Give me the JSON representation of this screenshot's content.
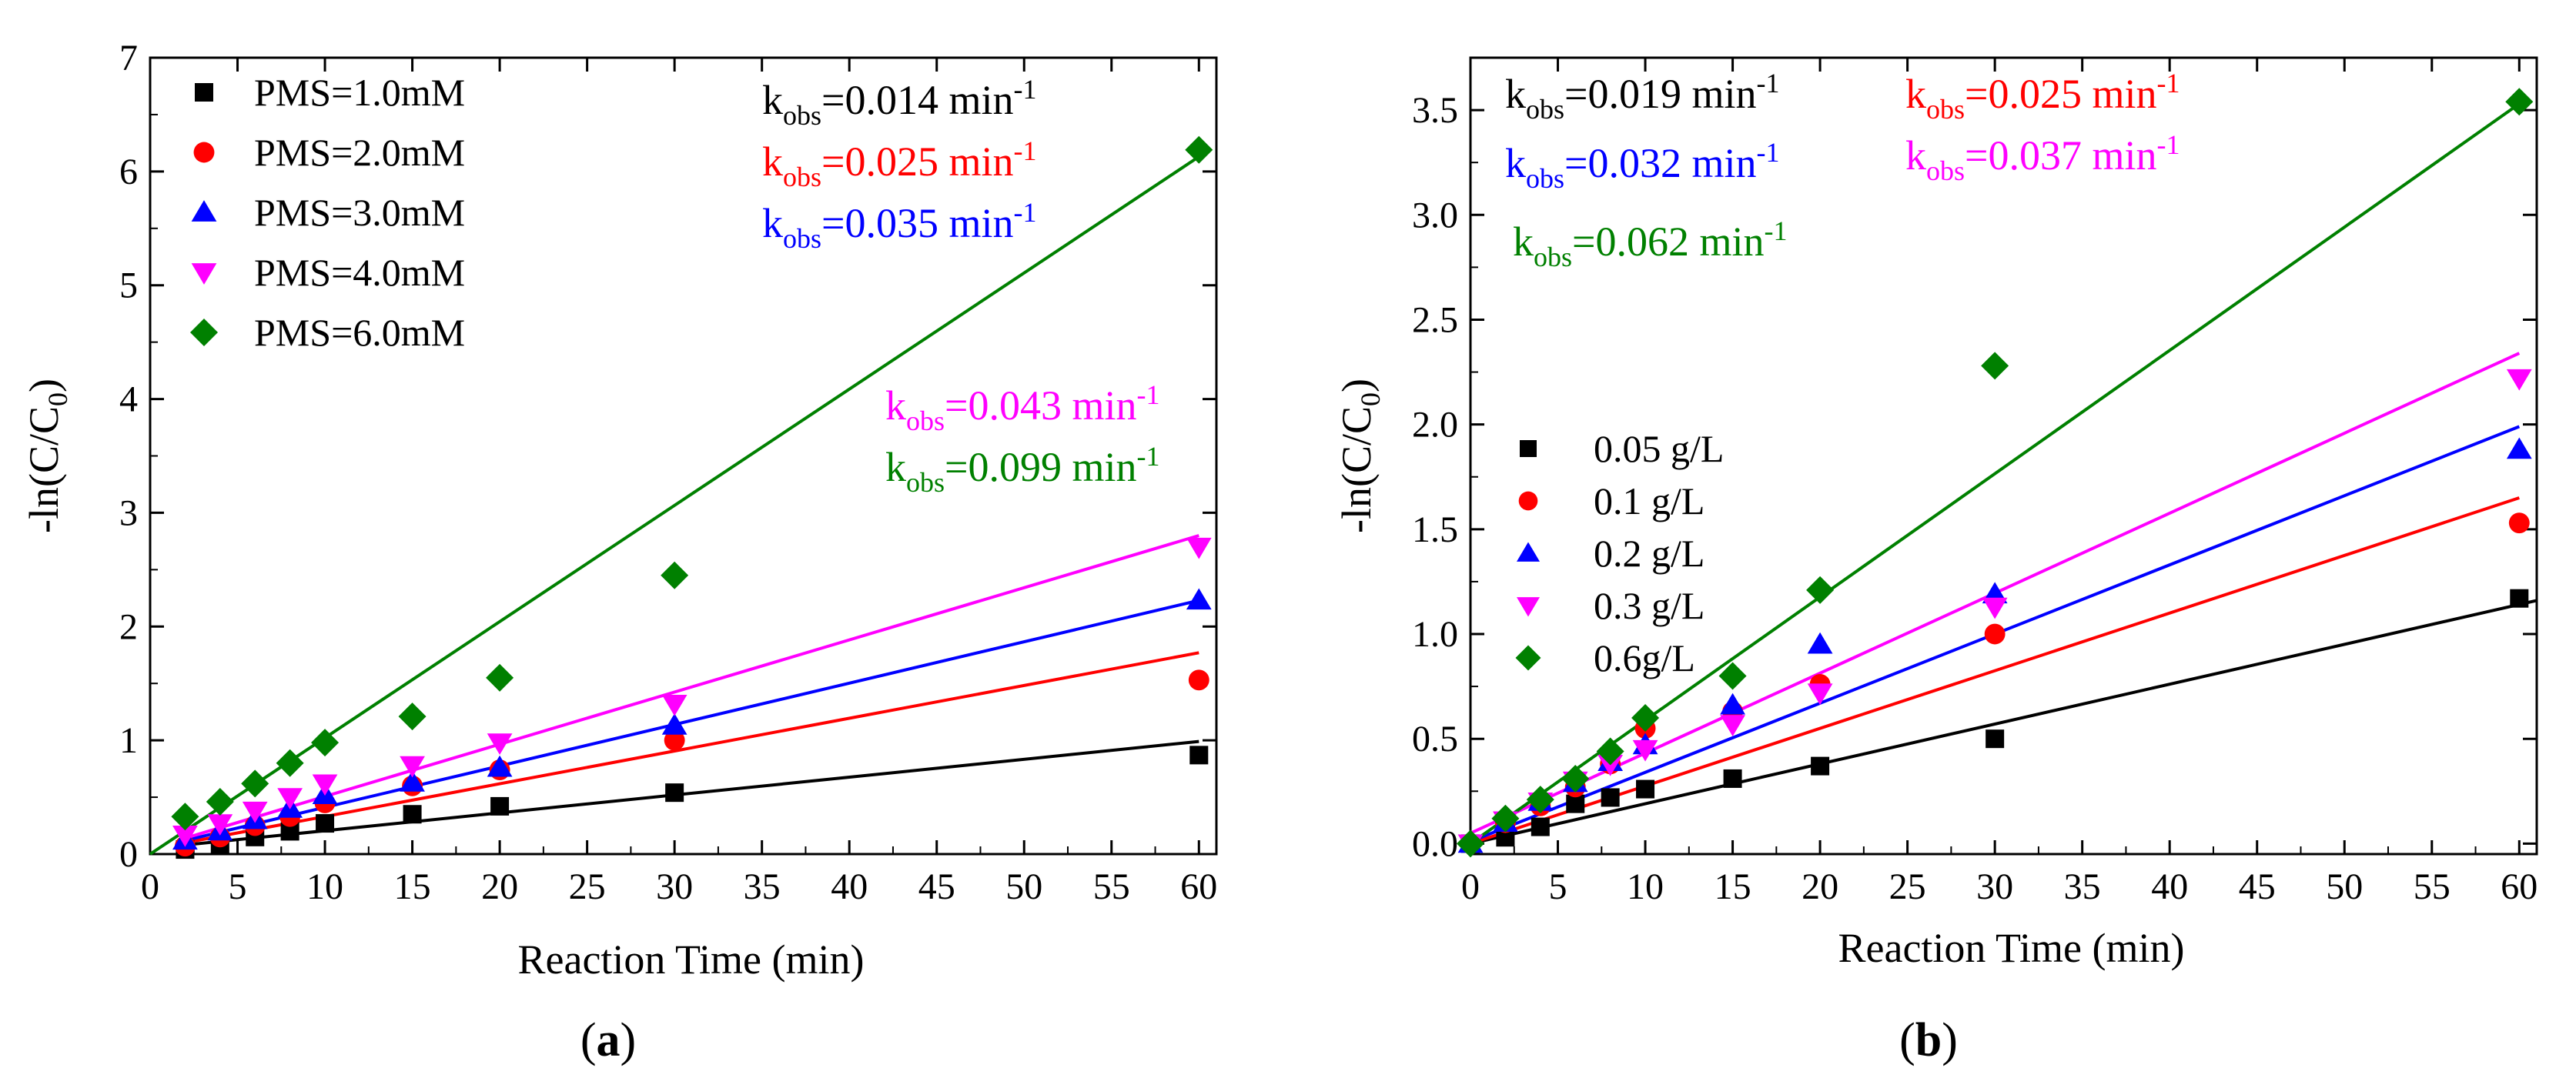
{
  "chart_data": [
    {
      "type": "scatter",
      "panel_label": "a",
      "xlabel": "Reaction Time (min)",
      "ylabel": "-ln(C/C",
      "ylabel_sub": "0",
      "ylabel_tail": ")",
      "xlim": [
        0,
        61
      ],
      "ylim": [
        0,
        7
      ],
      "xticks": [
        0,
        5,
        10,
        15,
        20,
        25,
        30,
        35,
        40,
        45,
        50,
        55,
        60
      ],
      "yticks": [
        0,
        1,
        2,
        3,
        4,
        5,
        6,
        7
      ],
      "legend_position": "top-left",
      "series": [
        {
          "name": "PMS=1.0mM",
          "marker": "square",
          "color": "#000000",
          "x": [
            2,
            4,
            6,
            8,
            10,
            15,
            20,
            30,
            60
          ],
          "y": [
            0.04,
            0.08,
            0.15,
            0.2,
            0.27,
            0.35,
            0.42,
            0.54,
            0.87
          ],
          "fit": {
            "x": [
              2,
              60
            ],
            "y": [
              0.08,
              0.99
            ]
          }
        },
        {
          "name": "PMS=2.0mM",
          "marker": "circle",
          "color": "#ff0000",
          "x": [
            2,
            4,
            6,
            8,
            10,
            15,
            20,
            30,
            60
          ],
          "y": [
            0.07,
            0.15,
            0.25,
            0.33,
            0.45,
            0.6,
            0.74,
            1.0,
            1.53
          ],
          "fit": {
            "x": [
              2,
              60
            ],
            "y": [
              0.1,
              1.77
            ]
          }
        },
        {
          "name": "PMS=3.0mM",
          "marker": "triangle-up",
          "color": "#0000ff",
          "x": [
            2,
            4,
            6,
            8,
            10,
            15,
            20,
            30,
            60
          ],
          "y": [
            0.12,
            0.2,
            0.3,
            0.4,
            0.52,
            0.63,
            0.76,
            1.13,
            2.23
          ],
          "fit": {
            "x": [
              2,
              60
            ],
            "y": [
              0.12,
              2.23
            ]
          }
        },
        {
          "name": "PMS=4.0mM",
          "marker": "triangle-down",
          "color": "#ff00ff",
          "x": [
            2,
            4,
            6,
            8,
            10,
            15,
            20,
            30,
            60
          ],
          "y": [
            0.17,
            0.27,
            0.38,
            0.5,
            0.62,
            0.78,
            0.98,
            1.32,
            2.7
          ],
          "fit": {
            "x": [
              2,
              60
            ],
            "y": [
              0.14,
              2.8
            ]
          }
        },
        {
          "name": "PMS=6.0mM",
          "marker": "diamond",
          "color": "#008000",
          "x": [
            2,
            4,
            6,
            8,
            10,
            15,
            20,
            30,
            60
          ],
          "y": [
            0.33,
            0.46,
            0.62,
            0.8,
            0.98,
            1.21,
            1.55,
            2.45,
            6.19
          ],
          "fit": {
            "x": [
              0,
              60
            ],
            "y": [
              0.0,
              6.13
            ]
          }
        }
      ],
      "annotations": [
        {
          "prefix": "k",
          "sub": "obs",
          "value": "=0.014 min",
          "sup": "-1",
          "color": "#000000"
        },
        {
          "prefix": "k",
          "sub": "obs",
          "value": "=0.025 min",
          "sup": "-1",
          "color": "#ff0000"
        },
        {
          "prefix": "k",
          "sub": "obs",
          "value": "=0.035 min",
          "sup": "-1",
          "color": "#0000ff"
        },
        {
          "prefix": "k",
          "sub": "obs",
          "value": "=0.043 min",
          "sup": "-1",
          "color": "#ff00ff"
        },
        {
          "prefix": "k",
          "sub": "obs",
          "value": "=0.099 min",
          "sup": "-1",
          "color": "#008000"
        }
      ]
    },
    {
      "type": "scatter",
      "panel_label": "b",
      "xlabel": "Reaction Time (min)",
      "ylabel": "-ln(C/C",
      "ylabel_sub": "0",
      "ylabel_tail": ")",
      "xlim": [
        0,
        61
      ],
      "ylim": [
        -0.05,
        3.75
      ],
      "xticks": [
        0,
        5,
        10,
        15,
        20,
        25,
        30,
        35,
        40,
        45,
        50,
        55,
        60
      ],
      "yticks": [
        0.0,
        0.5,
        1.0,
        1.5,
        2.0,
        2.5,
        3.0,
        3.5
      ],
      "ytick_labels": [
        "0.0",
        "0.5",
        "1.0",
        "1.5",
        "2.0",
        "2.5",
        "3.0",
        "3.5"
      ],
      "legend_position": "middle-left",
      "series": [
        {
          "name": "0.05 g/L",
          "marker": "square",
          "color": "#000000",
          "x": [
            0,
            2,
            4,
            6,
            8,
            10,
            15,
            20,
            30,
            60
          ],
          "y": [
            0.0,
            0.03,
            0.08,
            0.19,
            0.22,
            0.26,
            0.31,
            0.37,
            0.5,
            1.17
          ],
          "fit": {
            "x": [
              0,
              61
            ],
            "y": [
              0.0,
              1.16
            ]
          }
        },
        {
          "name": "0.1 g/L",
          "marker": "circle",
          "color": "#ff0000",
          "x": [
            0,
            2,
            4,
            6,
            8,
            10,
            15,
            20,
            30,
            60
          ],
          "y": [
            0.0,
            0.1,
            0.18,
            0.27,
            0.38,
            0.55,
            0.63,
            0.76,
            1.0,
            1.53
          ],
          "fit": {
            "x": [
              0,
              60
            ],
            "y": [
              0.0,
              1.65
            ]
          }
        },
        {
          "name": "0.2 g/L",
          "marker": "triangle-up",
          "color": "#0000ff",
          "x": [
            0,
            2,
            4,
            6,
            8,
            10,
            15,
            20,
            30,
            60
          ],
          "y": [
            0.0,
            0.1,
            0.2,
            0.29,
            0.39,
            0.47,
            0.66,
            0.95,
            1.19,
            1.88
          ],
          "fit": {
            "x": [
              0,
              60
            ],
            "y": [
              0.01,
              1.99
            ]
          }
        },
        {
          "name": "0.3 g/L",
          "marker": "triangle-down",
          "color": "#ff00ff",
          "x": [
            0,
            2,
            4,
            6,
            8,
            10,
            15,
            20,
            30,
            60
          ],
          "y": [
            0.0,
            0.11,
            0.2,
            0.3,
            0.38,
            0.45,
            0.57,
            0.72,
            1.13,
            2.22
          ],
          "fit": {
            "x": [
              0,
              60
            ],
            "y": [
              0.05,
              2.34
            ]
          }
        },
        {
          "name": "0.6g/L",
          "marker": "diamond",
          "color": "#008000",
          "x": [
            0,
            2,
            4,
            6,
            8,
            10,
            15,
            20,
            30,
            60
          ],
          "y": [
            0.0,
            0.12,
            0.21,
            0.31,
            0.44,
            0.6,
            0.8,
            1.21,
            2.28,
            3.54
          ],
          "fit": {
            "x": [
              0,
              60
            ],
            "y": [
              0.0,
              3.53
            ]
          }
        }
      ],
      "annotations": [
        {
          "prefix": "k",
          "sub": "obs",
          "value": "=0.019 min",
          "sup": "-1",
          "color": "#000000"
        },
        {
          "prefix": "k",
          "sub": "obs",
          "value": "=0.025 min",
          "sup": "-1",
          "color": "#ff0000"
        },
        {
          "prefix": "k",
          "sub": "obs",
          "value": "=0.032 min",
          "sup": "-1",
          "color": "#0000ff"
        },
        {
          "prefix": "k",
          "sub": "obs",
          "value": "=0.037 min",
          "sup": "-1",
          "color": "#ff00ff"
        },
        {
          "prefix": "k",
          "sub": "obs",
          "value": "=0.062 min",
          "sup": "-1",
          "color": "#008000"
        }
      ]
    }
  ]
}
